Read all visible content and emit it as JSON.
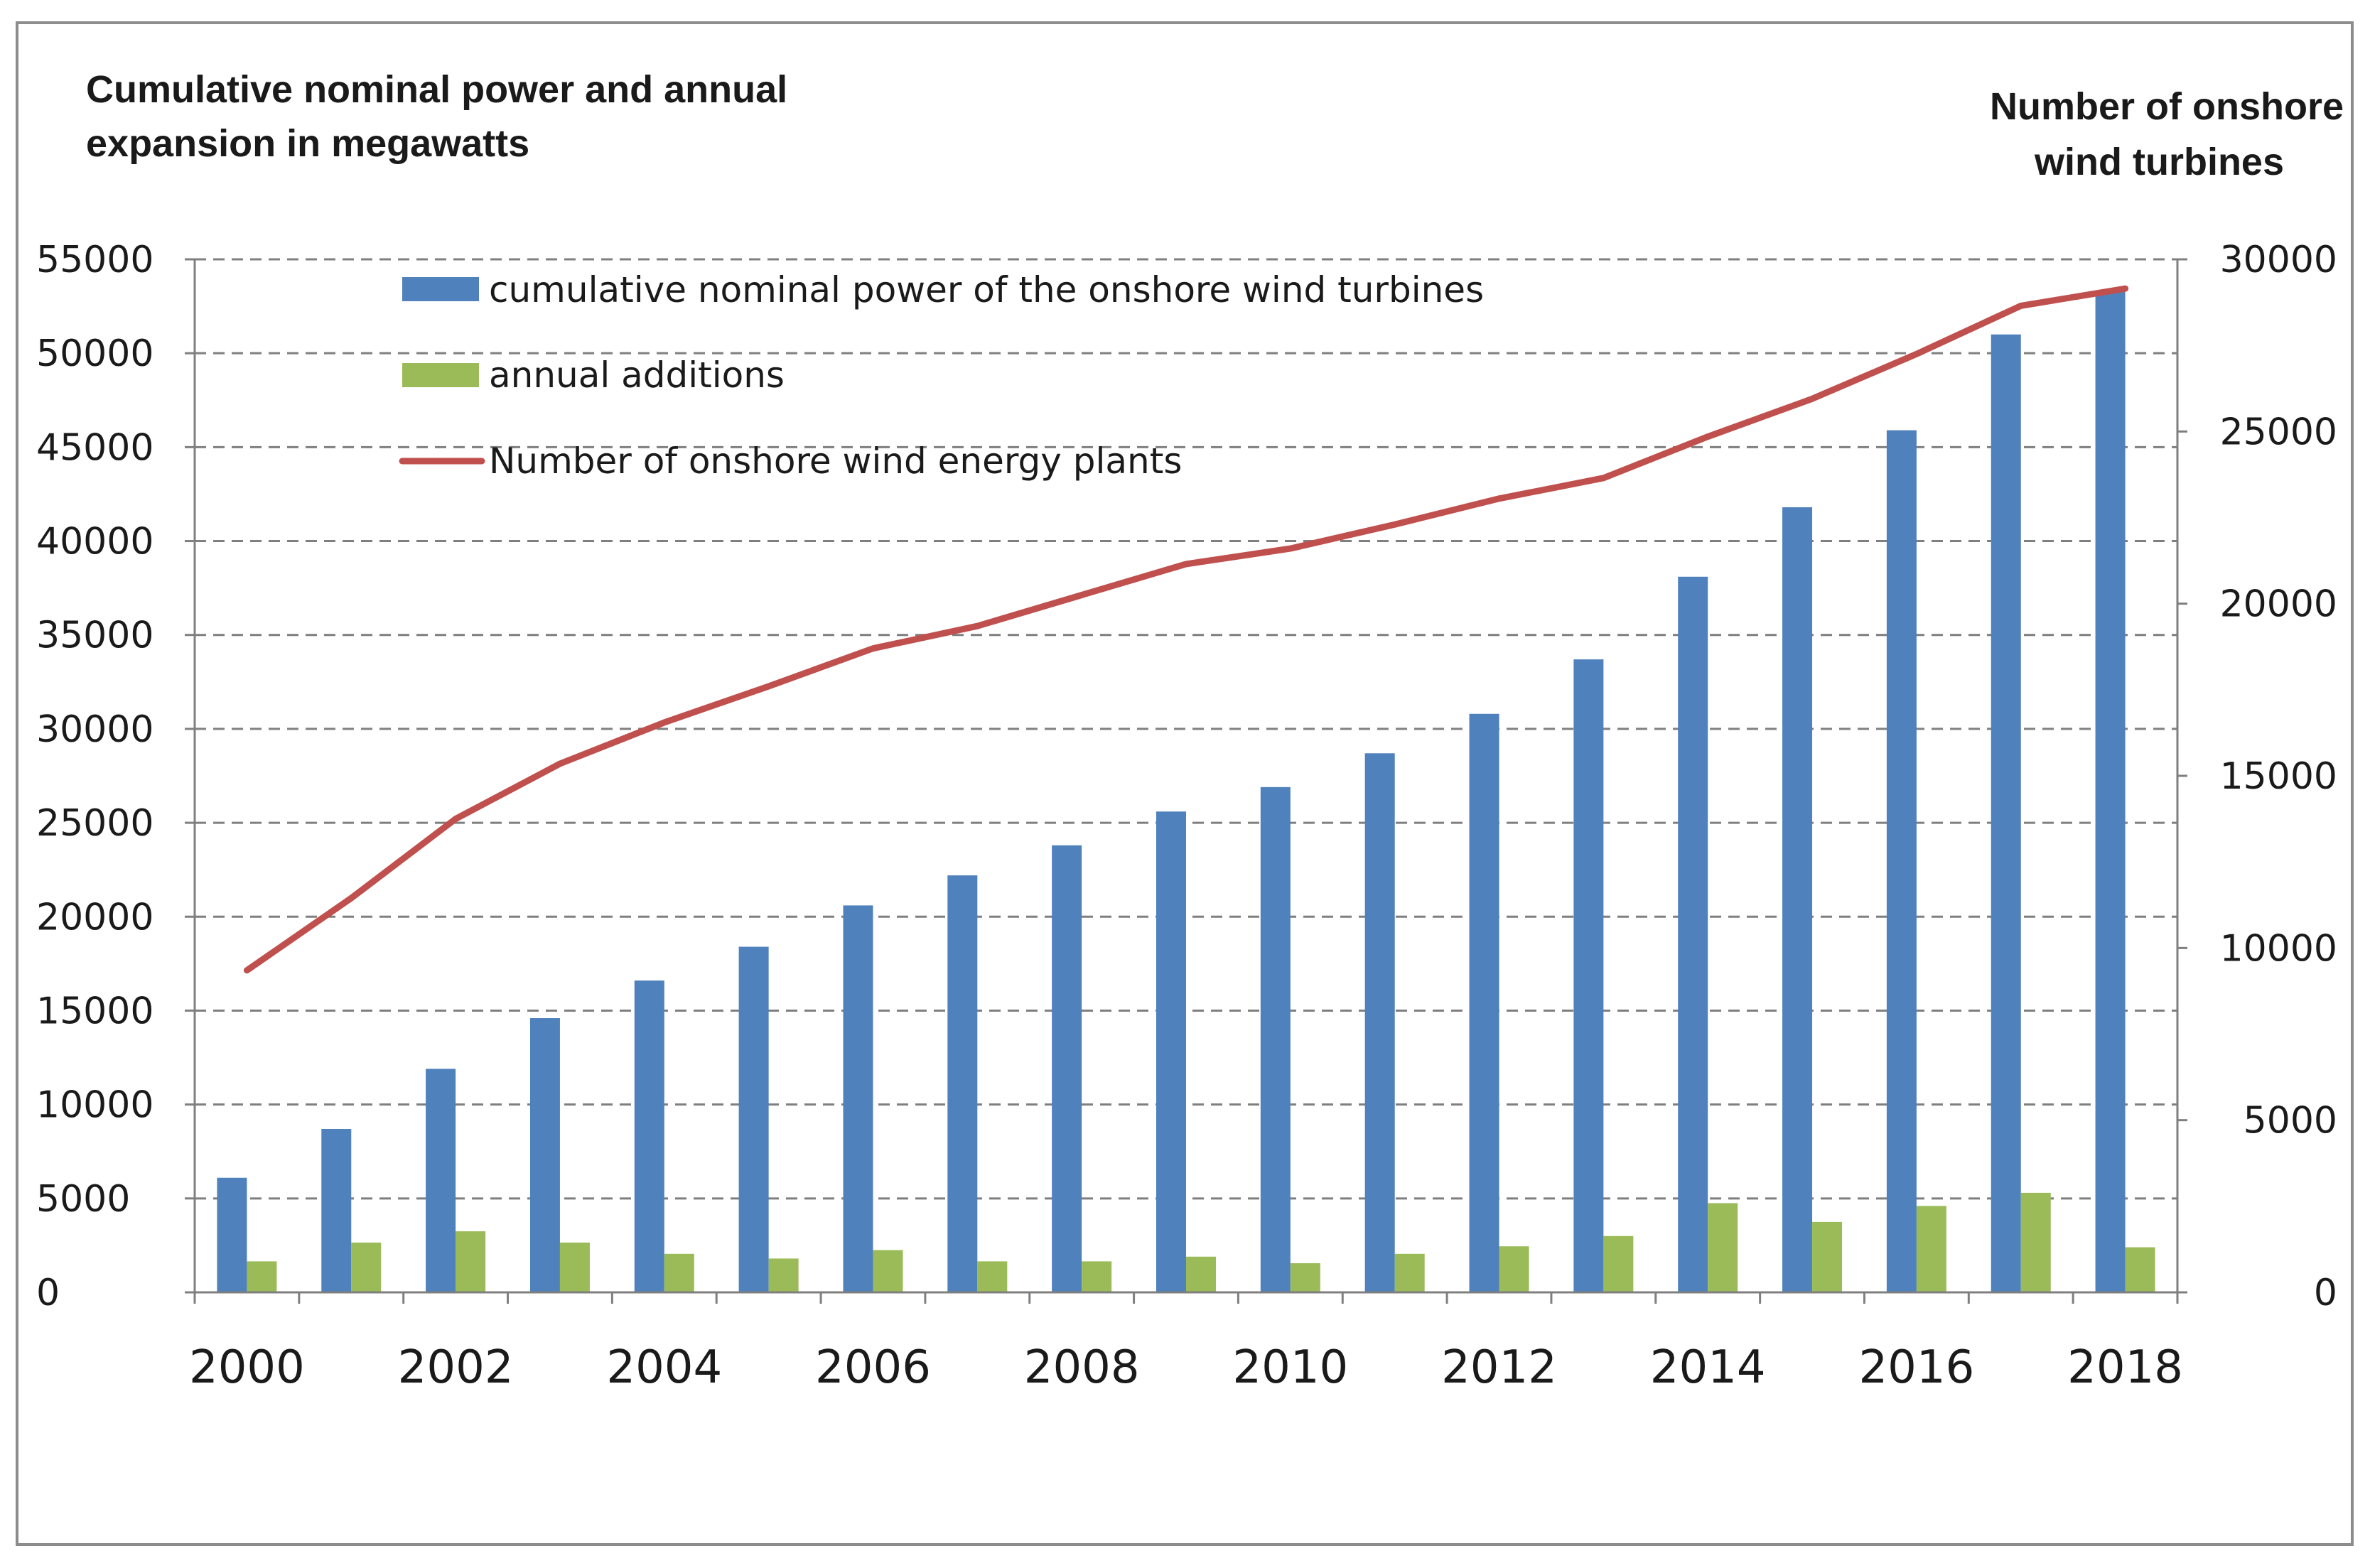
{
  "chart_data": {
    "type": "bar",
    "title_left": "Cumulative nominal power and annual expansion in megawatts",
    "title_left_lines": [
      "Cumulative nominal power and annual",
      "expansion in megawatts"
    ],
    "title_right": "Number of onshore wind turbines",
    "title_right_lines": [
      "Number of onshore",
      "wind turbines"
    ],
    "categories": [
      "2000",
      "2001",
      "2002",
      "2003",
      "2004",
      "2005",
      "2006",
      "2007",
      "2008",
      "2009",
      "2010",
      "2011",
      "2012",
      "2013",
      "2014",
      "2015",
      "2016",
      "2017",
      "2018"
    ],
    "x_tick_labels": [
      "2000",
      "2002",
      "2004",
      "2006",
      "2008",
      "2010",
      "2012",
      "2014",
      "2016",
      "2018"
    ],
    "y_left": {
      "min": 0,
      "max": 55000,
      "step": 5000,
      "ticks": [
        "0",
        "5000",
        "10000",
        "15000",
        "20000",
        "25000",
        "30000",
        "35000",
        "40000",
        "45000",
        "50000",
        "55000"
      ]
    },
    "y_right": {
      "min": 0,
      "max": 30000,
      "step": 5000,
      "ticks": [
        "0",
        "5000",
        "10000",
        "15000",
        "20000",
        "25000",
        "30000"
      ]
    },
    "grid": "horizontal dashed",
    "legend_position": "top-left inside plot",
    "series": [
      {
        "name": "cumulative nominal power of the onshore wind turbines",
        "kind": "bar",
        "axis": "left",
        "color": "#4f81bd",
        "values": [
          6100,
          8700,
          11900,
          14600,
          16600,
          18400,
          20600,
          22200,
          23800,
          25600,
          26900,
          28700,
          30800,
          33700,
          38100,
          41800,
          45900,
          51000,
          53300
        ]
      },
      {
        "name": "annual additions",
        "kind": "bar",
        "axis": "left",
        "color": "#9bbb59",
        "values": [
          1650,
          2650,
          3250,
          2650,
          2050,
          1800,
          2250,
          1650,
          1650,
          1900,
          1550,
          2050,
          2450,
          3000,
          4750,
          3750,
          4600,
          5300,
          2400
        ]
      },
      {
        "name": "Number of onshore wind energy plants",
        "kind": "line",
        "axis": "right",
        "color": "#c0504d",
        "values": [
          9350,
          11450,
          13750,
          15350,
          16550,
          17600,
          18700,
          19350,
          20250,
          21150,
          21600,
          22300,
          23050,
          23650,
          24850,
          25950,
          27250,
          28650,
          29150
        ]
      }
    ]
  }
}
